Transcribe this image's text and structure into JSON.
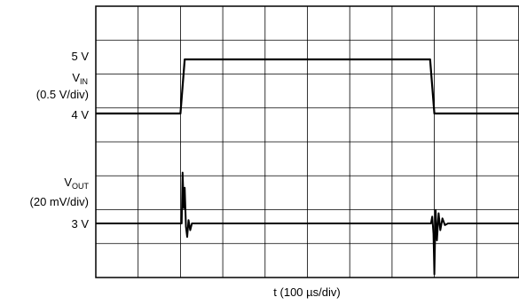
{
  "chart_data": {
    "type": "line",
    "title": "",
    "xlabel": "t (100 µs/div)",
    "grid": {
      "x_divisions": 10,
      "y_divisions": 8,
      "visible": true
    },
    "x": [
      0,
      2.0,
      2.1,
      7.9,
      8.0,
      10
    ],
    "series": [
      {
        "channel": "V_IN",
        "label_text": "V",
        "label_sub": "IN",
        "scale": "(0.5 V/div)",
        "levels": {
          "high": "5 V",
          "low": "4 V"
        },
        "values": [
          4.0,
          4.0,
          5.0,
          5.0,
          4.0,
          4.0
        ]
      },
      {
        "channel": "V_OUT",
        "label_text": "V",
        "label_sub": "OUT",
        "scale": "(20 mV/div)",
        "levels": {
          "baseline": "3 V"
        },
        "transients": [
          {
            "t": 2.05,
            "peak_mV": 30,
            "dip_mV": -8
          },
          {
            "t": 8.0,
            "peak_mV": 8,
            "dip_mV": -30
          }
        ]
      }
    ]
  }
}
